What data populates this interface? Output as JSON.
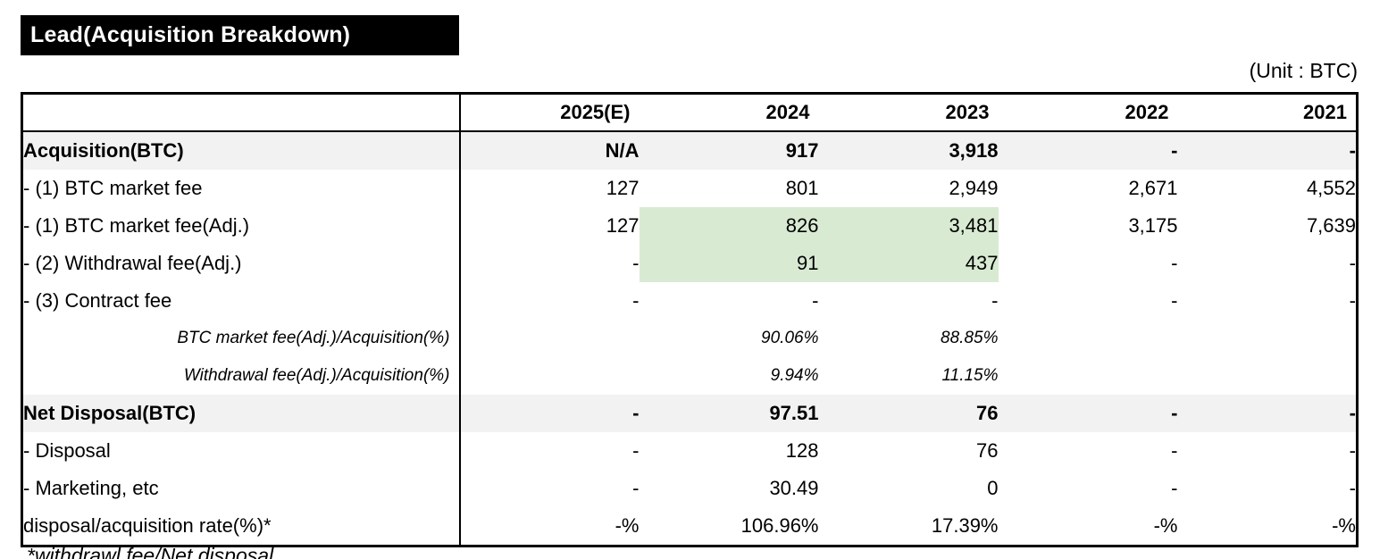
{
  "title": "Lead(Acquisition Breakdown)",
  "unit_label": "(Unit : BTC)",
  "footnote": "*withdrawl fee/Net disposal",
  "colors": {
    "title_bg": "#000000",
    "section_row_gray": "#f2f2f2",
    "highlight_green": "#d9ead3"
  },
  "table": {
    "columns": [
      "",
      "2025(E)",
      "2024",
      "2023",
      "2022",
      "2021"
    ],
    "rows": [
      {
        "label": "Acquisition(BTC)",
        "style": "section",
        "values": [
          "N/A",
          "917",
          "3,918",
          "-",
          "-"
        ]
      },
      {
        "label": "- (1) BTC market fee",
        "style": "normal",
        "values": [
          "127",
          "801",
          "2,949",
          "2,671",
          "4,552"
        ]
      },
      {
        "label": "- (1) BTC market fee(Adj.)",
        "style": "normal",
        "highlight": [
          1,
          2
        ],
        "values": [
          "127",
          "826",
          "3,481",
          "3,175",
          "7,639"
        ]
      },
      {
        "label": "- (2) Withdrawal fee(Adj.)",
        "style": "normal",
        "highlight": [
          1,
          2
        ],
        "values": [
          "-",
          "91",
          "437",
          "-",
          "-"
        ]
      },
      {
        "label": "- (3) Contract fee",
        "style": "normal",
        "values": [
          "-",
          "-",
          "-",
          "-",
          "-"
        ]
      },
      {
        "label": "BTC market fee(Adj.)/Acquisition(%)",
        "style": "italic",
        "values": [
          "",
          "90.06%",
          "88.85%",
          "",
          ""
        ]
      },
      {
        "label": "Withdrawal fee(Adj.)/Acquisition(%)",
        "style": "italic",
        "values": [
          "",
          "9.94%",
          "11.15%",
          "",
          ""
        ]
      },
      {
        "label": "Net Disposal(BTC)",
        "style": "section",
        "values": [
          "-",
          "97.51",
          "76",
          "-",
          "-"
        ]
      },
      {
        "label": "- Disposal",
        "style": "normal",
        "values": [
          "-",
          "128",
          "76",
          "-",
          "-"
        ]
      },
      {
        "label": "- Marketing, etc",
        "style": "normal",
        "values": [
          "-",
          "30.49",
          "0",
          "-",
          "-"
        ]
      },
      {
        "label": "disposal/acquisition rate(%)*",
        "style": "normal",
        "values": [
          "-%",
          "106.96%",
          "17.39%",
          "-%",
          "-%"
        ]
      }
    ]
  }
}
